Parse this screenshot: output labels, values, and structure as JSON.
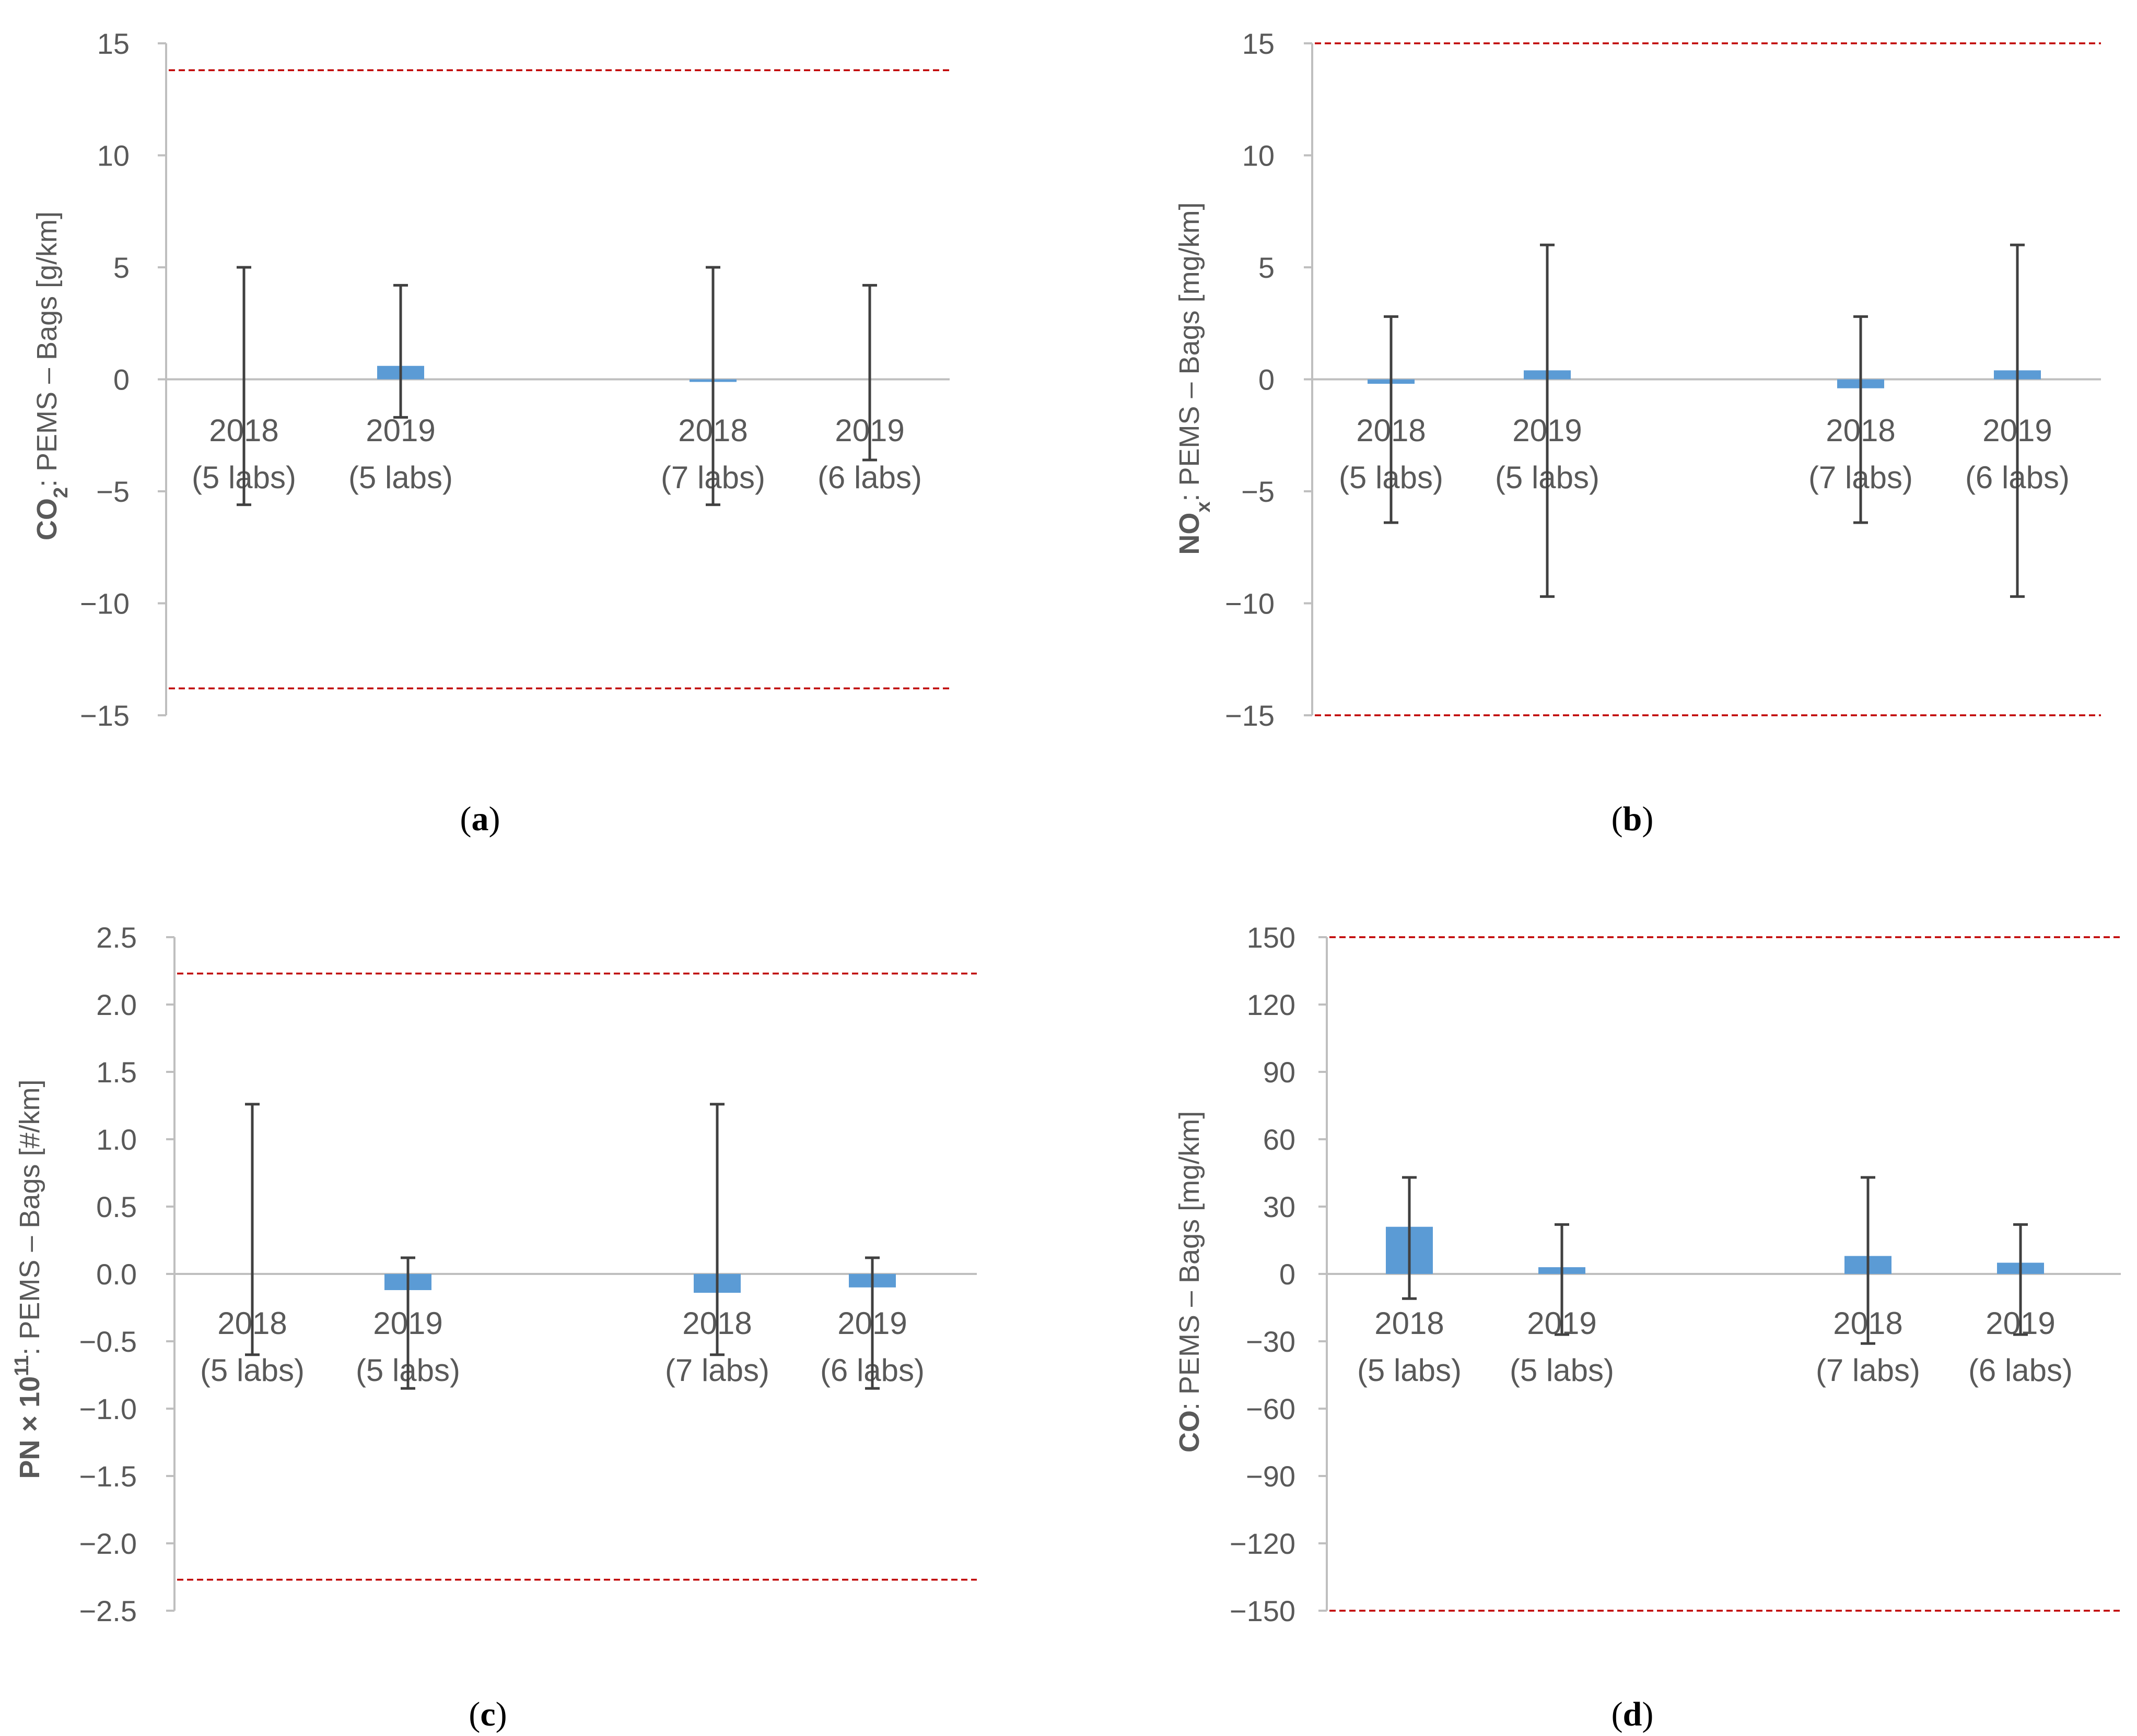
{
  "colors": {
    "bar": "#5B9BD5",
    "error_bar": "#404040",
    "limit_line": "#C00000",
    "axis": "#BFBFBF",
    "text": "#595959"
  },
  "chart_data": [
    {
      "type": "bar",
      "panel": "a",
      "ylabel": {
        "species": "CO",
        "sub": "2",
        "sup": "",
        "rest": ": PEMS – Bags [g/km]"
      },
      "ylim": [
        -15,
        15
      ],
      "yticks": [
        15,
        10,
        5,
        0,
        -5,
        -10,
        -15
      ],
      "ytick_labels": [
        "15",
        "10",
        "5",
        "0",
        "−5",
        "−10",
        "−15"
      ],
      "limits": [
        13.8,
        -13.8
      ],
      "categories": [
        {
          "year": "2018",
          "labs": "(5 labs)"
        },
        {
          "year": "2019",
          "labs": "(5 labs)"
        },
        {
          "year": "2018",
          "labs": "(7 labs)"
        },
        {
          "year": "2019",
          "labs": "(6 labs)"
        }
      ],
      "values": [
        0.0,
        0.6,
        -0.1,
        0.0
      ],
      "error_high": [
        5.0,
        4.2,
        5.0,
        4.2
      ],
      "error_low": [
        -5.6,
        -1.7,
        -5.6,
        -3.6
      ]
    },
    {
      "type": "bar",
      "panel": "b",
      "ylabel": {
        "species": "NO",
        "sub": "x",
        "sup": "",
        "rest": ": PEMS – Bags [mg/km]"
      },
      "ylim": [
        -15,
        15
      ],
      "yticks": [
        15,
        10,
        5,
        0,
        -5,
        -10,
        -15
      ],
      "ytick_labels": [
        "15",
        "10",
        "5",
        "0",
        "−5",
        "−10",
        "−15"
      ],
      "limits": [
        15,
        -15
      ],
      "categories": [
        {
          "year": "2018",
          "labs": "(5 labs)"
        },
        {
          "year": "2019",
          "labs": "(5 labs)"
        },
        {
          "year": "2018",
          "labs": "(7 labs)"
        },
        {
          "year": "2019",
          "labs": "(6 labs)"
        }
      ],
      "values": [
        -0.2,
        0.4,
        -0.4,
        0.4
      ],
      "error_high": [
        2.8,
        6.0,
        2.8,
        6.0
      ],
      "error_low": [
        -6.4,
        -9.7,
        -6.4,
        -9.7
      ]
    },
    {
      "type": "bar",
      "panel": "c",
      "ylabel": {
        "species": "PN × 10",
        "sub": "",
        "sup": "11",
        "rest": ": PEMS – Bags [#/km]"
      },
      "ylim": [
        -2.5,
        2.5
      ],
      "yticks": [
        2.5,
        2.0,
        1.5,
        1.0,
        0.5,
        0.0,
        -0.5,
        -1.0,
        -1.5,
        -2.0,
        -2.5
      ],
      "ytick_labels": [
        "2.5",
        "2.0",
        "1.5",
        "1.0",
        "0.5",
        "0.0",
        "−0.5",
        "−1.0",
        "−1.5",
        "−2.0",
        "−2.5"
      ],
      "limits": [
        2.23,
        -2.27
      ],
      "categories": [
        {
          "year": "2018",
          "labs": "(5 labs)"
        },
        {
          "year": "2019",
          "labs": "(5 labs)"
        },
        {
          "year": "2018",
          "labs": "(7 labs)"
        },
        {
          "year": "2019",
          "labs": "(6 labs)"
        }
      ],
      "values": [
        0.0,
        -0.12,
        -0.14,
        -0.1
      ],
      "error_high": [
        1.26,
        0.12,
        1.26,
        0.12
      ],
      "error_low": [
        -0.6,
        -0.85,
        -0.6,
        -0.85
      ]
    },
    {
      "type": "bar",
      "panel": "d",
      "ylabel": {
        "species": "CO",
        "sub": "",
        "sup": "",
        "rest": ": PEMS – Bags [mg/km]"
      },
      "ylim": [
        -150,
        150
      ],
      "yticks": [
        150,
        120,
        90,
        60,
        30,
        0,
        -30,
        -60,
        -90,
        -120,
        -150
      ],
      "ytick_labels": [
        "150",
        "120",
        "90",
        "60",
        "30",
        "0",
        "−30",
        "−60",
        "−90",
        "−120",
        "−150"
      ],
      "limits": [
        150,
        -150
      ],
      "categories": [
        {
          "year": "2018",
          "labs": "(5 labs)"
        },
        {
          "year": "2019",
          "labs": "(5 labs)"
        },
        {
          "year": "2018",
          "labs": "(7 labs)"
        },
        {
          "year": "2019",
          "labs": "(6 labs)"
        }
      ],
      "values": [
        21,
        3,
        8,
        5
      ],
      "error_high": [
        43,
        22,
        43,
        22
      ],
      "error_low": [
        -11,
        -27,
        -31,
        -27
      ]
    }
  ]
}
